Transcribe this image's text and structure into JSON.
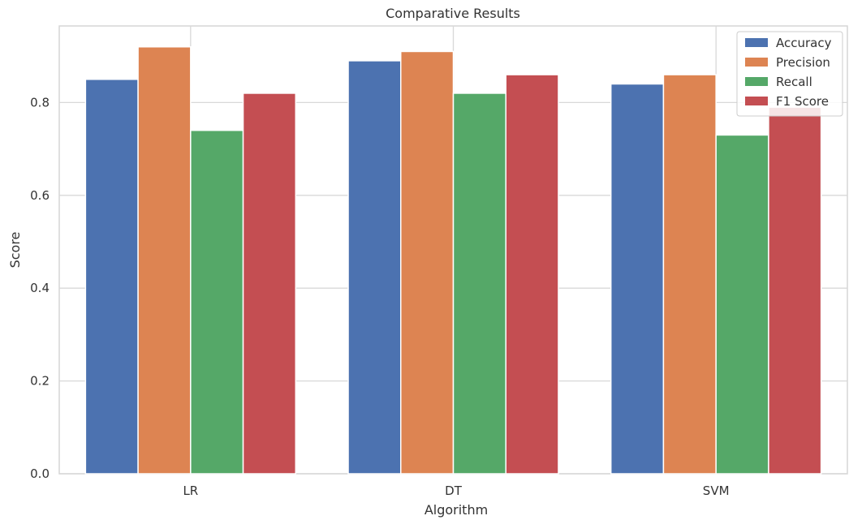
{
  "chart_data": {
    "type": "bar",
    "title": "Comparative Results",
    "xlabel": "Algorithm",
    "ylabel": "Score",
    "categories": [
      "LR",
      "DT",
      "SVM"
    ],
    "series": [
      {
        "name": "Accuracy",
        "color": "#4c72b0",
        "values": [
          0.85,
          0.89,
          0.84
        ]
      },
      {
        "name": "Precision",
        "color": "#dd8452",
        "values": [
          0.92,
          0.91,
          0.86
        ]
      },
      {
        "name": "Recall",
        "color": "#55a868",
        "values": [
          0.74,
          0.82,
          0.73
        ]
      },
      {
        "name": "F1 Score",
        "color": "#c44e52",
        "values": [
          0.82,
          0.86,
          0.79
        ]
      }
    ],
    "ylim": [
      0,
      0.965
    ],
    "yticks": [
      "0.0",
      "0.2",
      "0.4",
      "0.6",
      "0.8"
    ],
    "grid": true,
    "legend_position": "top-right"
  }
}
